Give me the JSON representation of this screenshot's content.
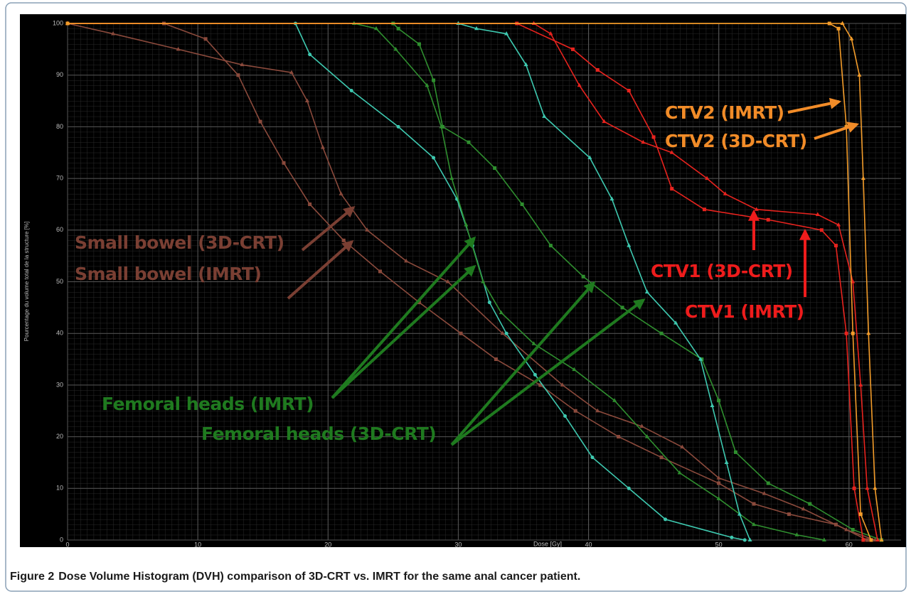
{
  "chart_data": {
    "type": "line",
    "xlabel": "Dose [Gy]",
    "ylabel": "Pourcentage du volume total de la structure [%]",
    "caption_label": "Figure 2",
    "caption": "Dose Volume Histogram (DVH) comparison of 3D-CRT vs. IMRT for the same anal cancer patient.",
    "xlim": [
      0,
      64
    ],
    "ylim": [
      0,
      100
    ],
    "xticks": [
      0,
      10,
      20,
      30,
      40,
      50,
      60
    ],
    "yticks": [
      0,
      10,
      20,
      30,
      40,
      50,
      60,
      70,
      80,
      90,
      100
    ],
    "grid": true,
    "series": [
      {
        "color": "#8b4a3c",
        "marker": "triangle",
        "x": [
          0,
          3.5,
          8.5,
          13.4,
          17.2,
          18.4,
          19.6,
          21,
          23,
          26,
          29.2,
          33.4,
          38,
          40.7,
          44.1,
          47.2,
          50,
          53.5,
          56.5,
          59.8,
          62
        ],
        "values": [
          100,
          98,
          95,
          92,
          90.5,
          85,
          76,
          67,
          60,
          54,
          50,
          40,
          30,
          25,
          22,
          18,
          12,
          9,
          6,
          2,
          0
        ]
      },
      {
        "color": "#8b4a3c",
        "marker": "square",
        "x": [
          0,
          7.4,
          10.6,
          13.1,
          14.8,
          16.6,
          18.6,
          21.2,
          24,
          27,
          30.2,
          32.9,
          36.3,
          39,
          42.3,
          45.6,
          50,
          52.7,
          55.4,
          59,
          61.4
        ],
        "values": [
          100,
          100,
          97,
          90,
          81,
          73,
          65,
          58,
          52,
          46,
          40,
          35,
          30,
          25,
          20,
          16,
          11,
          7,
          5,
          3,
          0
        ]
      },
      {
        "color": "#3ec9b0",
        "marker": "circle",
        "x": [
          17.5,
          18.6,
          21.8,
          25.4,
          28.1,
          29.9,
          31.1,
          32.4,
          33.7,
          35.9,
          38.2,
          40.3,
          43.1,
          45.9,
          51,
          52
        ],
        "values": [
          100,
          94,
          87,
          80,
          74,
          66,
          57,
          46,
          40,
          32,
          24,
          16,
          10,
          4,
          0.5,
          0
        ]
      },
      {
        "color": "#2f8f2f",
        "marker": "triangle",
        "x": [
          22,
          23.7,
          25.2,
          27.6,
          28.7,
          29.5,
          30.6,
          31.9,
          33.3,
          35.8,
          38.9,
          42,
          44.5,
          47,
          50,
          52.7,
          56,
          58.1
        ],
        "values": [
          100,
          99,
          95,
          88,
          80,
          70,
          61,
          50,
          44,
          38,
          33,
          27,
          20,
          13,
          8,
          3,
          1,
          0
        ]
      },
      {
        "color": "#2f8f2f",
        "marker": "square",
        "x": [
          25,
          25.4,
          27,
          28.1,
          28.8,
          30.8,
          32.8,
          34.9,
          37.1,
          39.6,
          42.6,
          45.6,
          48.7,
          50,
          51.3,
          53.8,
          57,
          60.3,
          62.5
        ],
        "values": [
          100,
          99,
          96,
          89,
          80,
          77,
          72,
          65,
          57,
          51,
          45,
          40,
          35,
          27,
          17,
          11,
          7,
          2,
          0
        ]
      },
      {
        "color": "#3ec9b0",
        "marker": "triangle",
        "x": [
          30,
          31.4,
          33.7,
          35.2,
          36.6,
          40.1,
          41.8,
          43.1,
          44.5,
          46.7,
          48.6,
          49.5,
          50.6,
          51.6,
          52.4
        ],
        "values": [
          100,
          99,
          98,
          92,
          82,
          74,
          66,
          57,
          48,
          42,
          35,
          26,
          15,
          5,
          0
        ]
      },
      {
        "color": "#e8231e",
        "marker": "triangle",
        "x": [
          0,
          35.8,
          37.1,
          39.3,
          41.2,
          44.2,
          46.4,
          49.1,
          50.5,
          52.9,
          57.6,
          59.2,
          60.3,
          60.9,
          61.4,
          62.2
        ],
        "values": [
          100,
          100,
          98,
          88,
          81,
          77,
          75,
          70,
          67,
          64,
          63,
          61,
          50,
          30,
          10,
          0
        ]
      },
      {
        "color": "#e8231e",
        "marker": "square",
        "x": [
          0,
          34.5,
          38.8,
          40.7,
          43.1,
          45,
          46.4,
          48.9,
          53.8,
          57.9,
          59,
          59.8,
          60.4,
          61.1
        ],
        "values": [
          100,
          100,
          95,
          91,
          87,
          78,
          68,
          64,
          62,
          60,
          57,
          40,
          10,
          0
        ]
      },
      {
        "color": "#f39c2a",
        "marker": "square",
        "x": [
          0,
          58.5,
          59.2,
          59.8,
          60.3,
          60.9,
          61.7
        ],
        "values": [
          100,
          100,
          99,
          80,
          40,
          5,
          0
        ]
      },
      {
        "color": "#f39c2a",
        "marker": "triangle",
        "x": [
          0,
          59.5,
          60.2,
          60.8,
          61.1,
          61.5,
          62,
          62.5
        ],
        "values": [
          100,
          100,
          97,
          90,
          70,
          40,
          10,
          0
        ]
      }
    ],
    "annotations": [
      {
        "text": "Small bowel (3D-CRT)",
        "color": "#7a3f33"
      },
      {
        "text": "Small bowel (IMRT)",
        "color": "#7a3f33"
      },
      {
        "text": "Femoral heads (IMRT)",
        "color": "#1f7a1f"
      },
      {
        "text": "Femoral heads (3D-CRT)",
        "color": "#1f7a1f"
      },
      {
        "text": "CTV1 (3D-CRT)",
        "color": "#ee1c1c"
      },
      {
        "text": "CTV1 (IMRT)",
        "color": "#ee1c1c"
      },
      {
        "text": "CTV2 (IMRT)",
        "color": "#f28c28"
      },
      {
        "text": "CTV2 (3D-CRT)",
        "color": "#f28c28"
      }
    ]
  }
}
